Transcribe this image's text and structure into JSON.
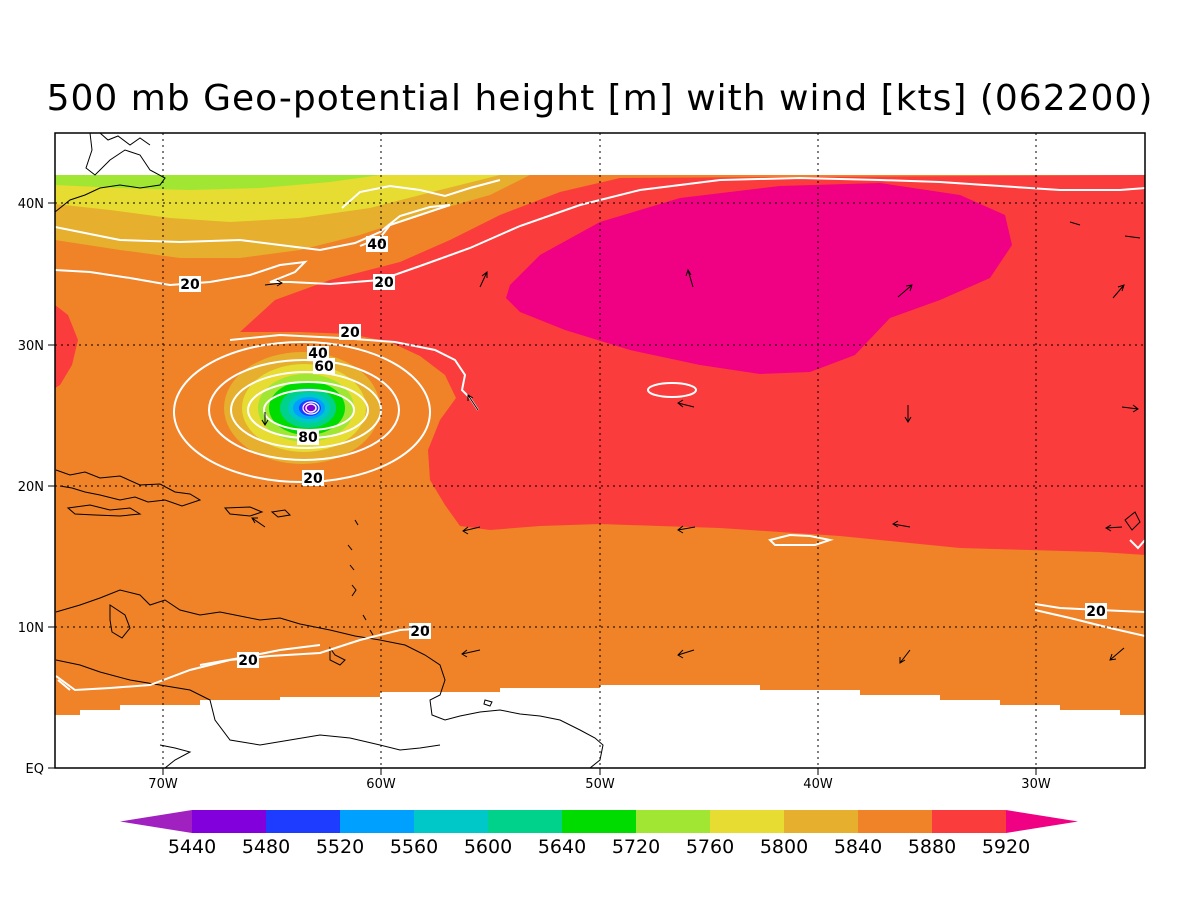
{
  "title": "500 mb Geo-potential height [m] with wind [kts] (062200)",
  "map": {
    "lon_ticks": [
      "70W",
      "60W",
      "50W",
      "40W",
      "30W"
    ],
    "lat_ticks": [
      "EQ",
      "10N",
      "20N",
      "30N",
      "40N"
    ],
    "contour_labels": [
      "40",
      "20",
      "20",
      "20",
      "40",
      "60",
      "80",
      "20",
      "20",
      "20",
      "20"
    ]
  },
  "colorbar": {
    "labels": [
      "5440",
      "5480",
      "5520",
      "5560",
      "5600",
      "5640",
      "5720",
      "5760",
      "5800",
      "5840",
      "5880",
      "5920"
    ],
    "colors": [
      "#a020c0",
      "#8200dc",
      "#1e3cff",
      "#00a0ff",
      "#00c8c8",
      "#00d28c",
      "#00dc00",
      "#a0e632",
      "#e6dc32",
      "#e6af2d",
      "#f08228",
      "#fa3c3c",
      "#f00082"
    ]
  },
  "legend_colors": {
    "orange_5840": "#f08228",
    "red_5880": "#fa3c3c",
    "magenta_5920": "#f00082",
    "gold_5800": "#e6af2d",
    "yellow_5760": "#e6dc32",
    "lime_5720": "#a0e632"
  }
}
